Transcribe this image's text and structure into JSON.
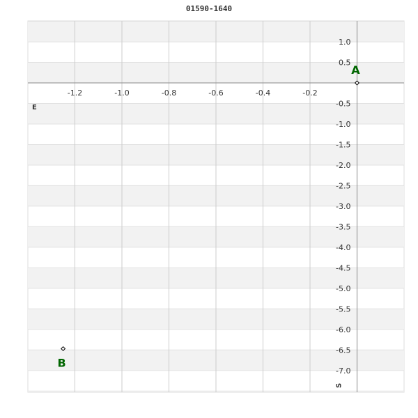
{
  "chart_data": {
    "type": "scatter",
    "title": "01590-1640",
    "xlabel": "E",
    "ylabel": "S",
    "xlim": [
      -1.4,
      0.2
    ],
    "ylim": [
      -7.53,
      1.51
    ],
    "x_ticks": [
      -1.2,
      -1.0,
      -0.8,
      -0.6,
      -0.4,
      -0.2
    ],
    "y_ticks": [
      1.0,
      0.5,
      -0.5,
      -1.0,
      -1.5,
      -2.0,
      -2.5,
      -3.0,
      -3.5,
      -4.0,
      -4.5,
      -5.0,
      -5.5,
      -6.0,
      -6.5,
      -7.0
    ],
    "grid": true,
    "points": [
      {
        "label": "A",
        "x": 0.0,
        "y": 0.0
      },
      {
        "label": "B",
        "x": -1.25,
        "y": -6.47
      }
    ],
    "colors": {
      "label": "#006600",
      "band": "#f2f2f2",
      "grid": "#cccccc",
      "axis": "#888888"
    }
  }
}
